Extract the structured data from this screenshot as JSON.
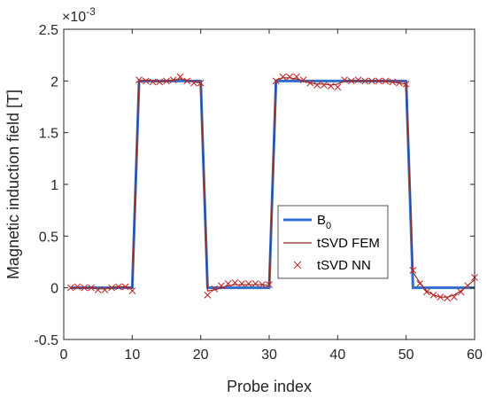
{
  "chart_data": {
    "type": "line",
    "title": "",
    "xlabel": "Probe index",
    "ylabel": "Magnetic induction field [T]",
    "y_exponent_label": "×10",
    "y_exponent_power": "-3",
    "xlim": [
      0,
      60
    ],
    "ylim": [
      -0.5,
      2.5
    ],
    "y_scale_note": "values in units of 10^-3 T",
    "x_ticks": [
      0,
      10,
      20,
      30,
      40,
      50,
      60
    ],
    "x_tick_labels": [
      "0",
      "10",
      "20",
      "30",
      "40",
      "50",
      "60"
    ],
    "y_ticks": [
      -0.5,
      0,
      0.5,
      1,
      1.5,
      2,
      2.5
    ],
    "y_tick_labels": [
      "-0.5",
      "0",
      "0.5",
      "1",
      "1.5",
      "2",
      "2.5"
    ],
    "grid": false,
    "legend_position": "center-right",
    "series": [
      {
        "name": "B",
        "name_subscript": "0",
        "style": "line",
        "color": "#2f6fcf",
        "x": [
          1,
          2,
          3,
          4,
          5,
          6,
          7,
          8,
          9,
          10,
          11,
          12,
          13,
          14,
          15,
          16,
          17,
          18,
          19,
          20,
          21,
          22,
          23,
          24,
          25,
          26,
          27,
          28,
          29,
          30,
          31,
          32,
          33,
          34,
          35,
          36,
          37,
          38,
          39,
          40,
          41,
          42,
          43,
          44,
          45,
          46,
          47,
          48,
          49,
          50,
          51,
          52,
          53,
          54,
          55,
          56,
          57,
          58,
          59,
          60
        ],
        "values": [
          0,
          0,
          0,
          0,
          0,
          0,
          0,
          0,
          0,
          0,
          2,
          2,
          2,
          2,
          2,
          2,
          2,
          2,
          2,
          2,
          0,
          0,
          0,
          0,
          0,
          0,
          0,
          0,
          0,
          0,
          2,
          2,
          2,
          2,
          2,
          2,
          2,
          2,
          2,
          2,
          2,
          2,
          2,
          2,
          2,
          2,
          2,
          2,
          2,
          2,
          0,
          0,
          0,
          0,
          0,
          0,
          0,
          0,
          0,
          0
        ]
      },
      {
        "name": "tSVD FEM",
        "style": "line",
        "color": "#8b2a1e",
        "x": [
          1,
          2,
          3,
          4,
          5,
          6,
          7,
          8,
          9,
          10,
          11,
          12,
          13,
          14,
          15,
          16,
          17,
          18,
          19,
          20,
          21,
          22,
          23,
          24,
          25,
          26,
          27,
          28,
          29,
          30,
          31,
          32,
          33,
          34,
          35,
          36,
          37,
          38,
          39,
          40,
          41,
          42,
          43,
          44,
          45,
          46,
          47,
          48,
          49,
          50,
          51,
          52,
          53,
          54,
          55,
          56,
          57,
          58,
          59,
          60
        ],
        "values": [
          0,
          0,
          0,
          0,
          -0.01,
          -0.01,
          0,
          0.01,
          0.01,
          0,
          2,
          2.01,
          2.0,
          1.99,
          2.0,
          2.01,
          2.02,
          2.01,
          1.99,
          1.98,
          -0.03,
          -0.02,
          0,
          0.02,
          0.03,
          0.03,
          0.03,
          0.03,
          0.03,
          0.02,
          2.01,
          2.03,
          2.03,
          2.02,
          2.0,
          1.98,
          1.97,
          1.97,
          1.96,
          1.97,
          2.0,
          2.0,
          2.0,
          2.0,
          2.0,
          2.0,
          2.0,
          1.99,
          1.98,
          1.97,
          0.15,
          0.05,
          -0.03,
          -0.07,
          -0.09,
          -0.09,
          -0.07,
          -0.03,
          0.02,
          0.08
        ]
      },
      {
        "name": "tSVD NN",
        "style": "marker",
        "color": "#c0282a",
        "x": [
          1,
          2,
          3,
          4,
          5,
          6,
          7,
          8,
          9,
          10,
          11,
          12,
          13,
          14,
          15,
          16,
          17,
          18,
          19,
          20,
          21,
          22,
          23,
          24,
          25,
          26,
          27,
          28,
          29,
          30,
          31,
          32,
          33,
          34,
          35,
          36,
          37,
          38,
          39,
          40,
          41,
          42,
          43,
          44,
          45,
          46,
          47,
          48,
          49,
          50,
          51,
          52,
          53,
          54,
          55,
          56,
          57,
          58,
          59,
          60
        ],
        "values": [
          0,
          0.01,
          0,
          0,
          -0.02,
          -0.02,
          0,
          0.01,
          0.01,
          -0.03,
          2.01,
          2.0,
          1.99,
          1.99,
          2.0,
          2.01,
          2.04,
          2.0,
          1.98,
          1.98,
          -0.07,
          -0.01,
          0.02,
          0.04,
          0.05,
          0.04,
          0.04,
          0.04,
          0.03,
          0.03,
          2.0,
          2.04,
          2.04,
          2.04,
          2.01,
          1.98,
          1.96,
          1.96,
          1.95,
          1.94,
          2.01,
          2.0,
          2.01,
          2.0,
          2.0,
          2.0,
          2.0,
          1.99,
          1.98,
          1.97,
          0.17,
          0.04,
          -0.04,
          -0.07,
          -0.09,
          -0.1,
          -0.09,
          -0.04,
          0.02,
          0.1
        ]
      }
    ]
  },
  "colors": {
    "axis": "#262626",
    "background": "#ffffff",
    "plot_background": "#ffffff"
  }
}
